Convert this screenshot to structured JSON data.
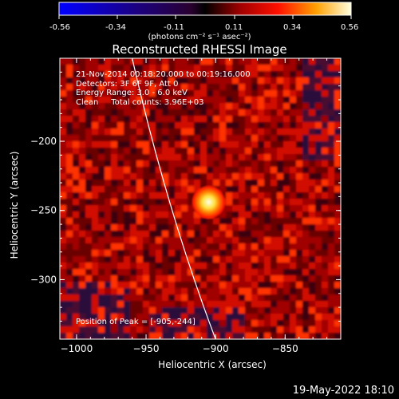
{
  "colorbar": {
    "ticks": [
      "-0.56",
      "-0.34",
      "-0.11",
      "0.11",
      "0.34",
      "0.56"
    ],
    "unit": "(photons cm⁻² s⁻¹ asec⁻²)"
  },
  "chart_data": {
    "type": "heatmap",
    "title": "Reconstructed RHESSI Image",
    "xlabel": "Heliocentric X (arcsec)",
    "ylabel": "Heliocentric Y (arcsec)",
    "xlim": [
      -1012,
      -810
    ],
    "ylim": [
      -343,
      -140
    ],
    "xticks": [
      -1000,
      -950,
      -900,
      -850
    ],
    "xtick_labels": [
      "−1000",
      "−950",
      "−900",
      "−850"
    ],
    "yticks": [
      -200,
      -250,
      -300
    ],
    "ytick_labels": [
      "−200",
      "−250",
      "−300"
    ],
    "colorbar_range": [
      -0.56,
      0.56
    ],
    "peak": {
      "x": -905,
      "y": -244
    },
    "annotations": [
      "21-Nov-2014 00:18:20.000 to 00:19:16.000",
      "Detectors: 3F 6F 9F, Att 0",
      "Energy Range: 3.0 - 6.0 keV",
      "Clean     Total counts: 3.96E+03"
    ],
    "peak_label": "Position of Peak = [-905,-244]"
  },
  "footer": "19-May-2022 18:10"
}
